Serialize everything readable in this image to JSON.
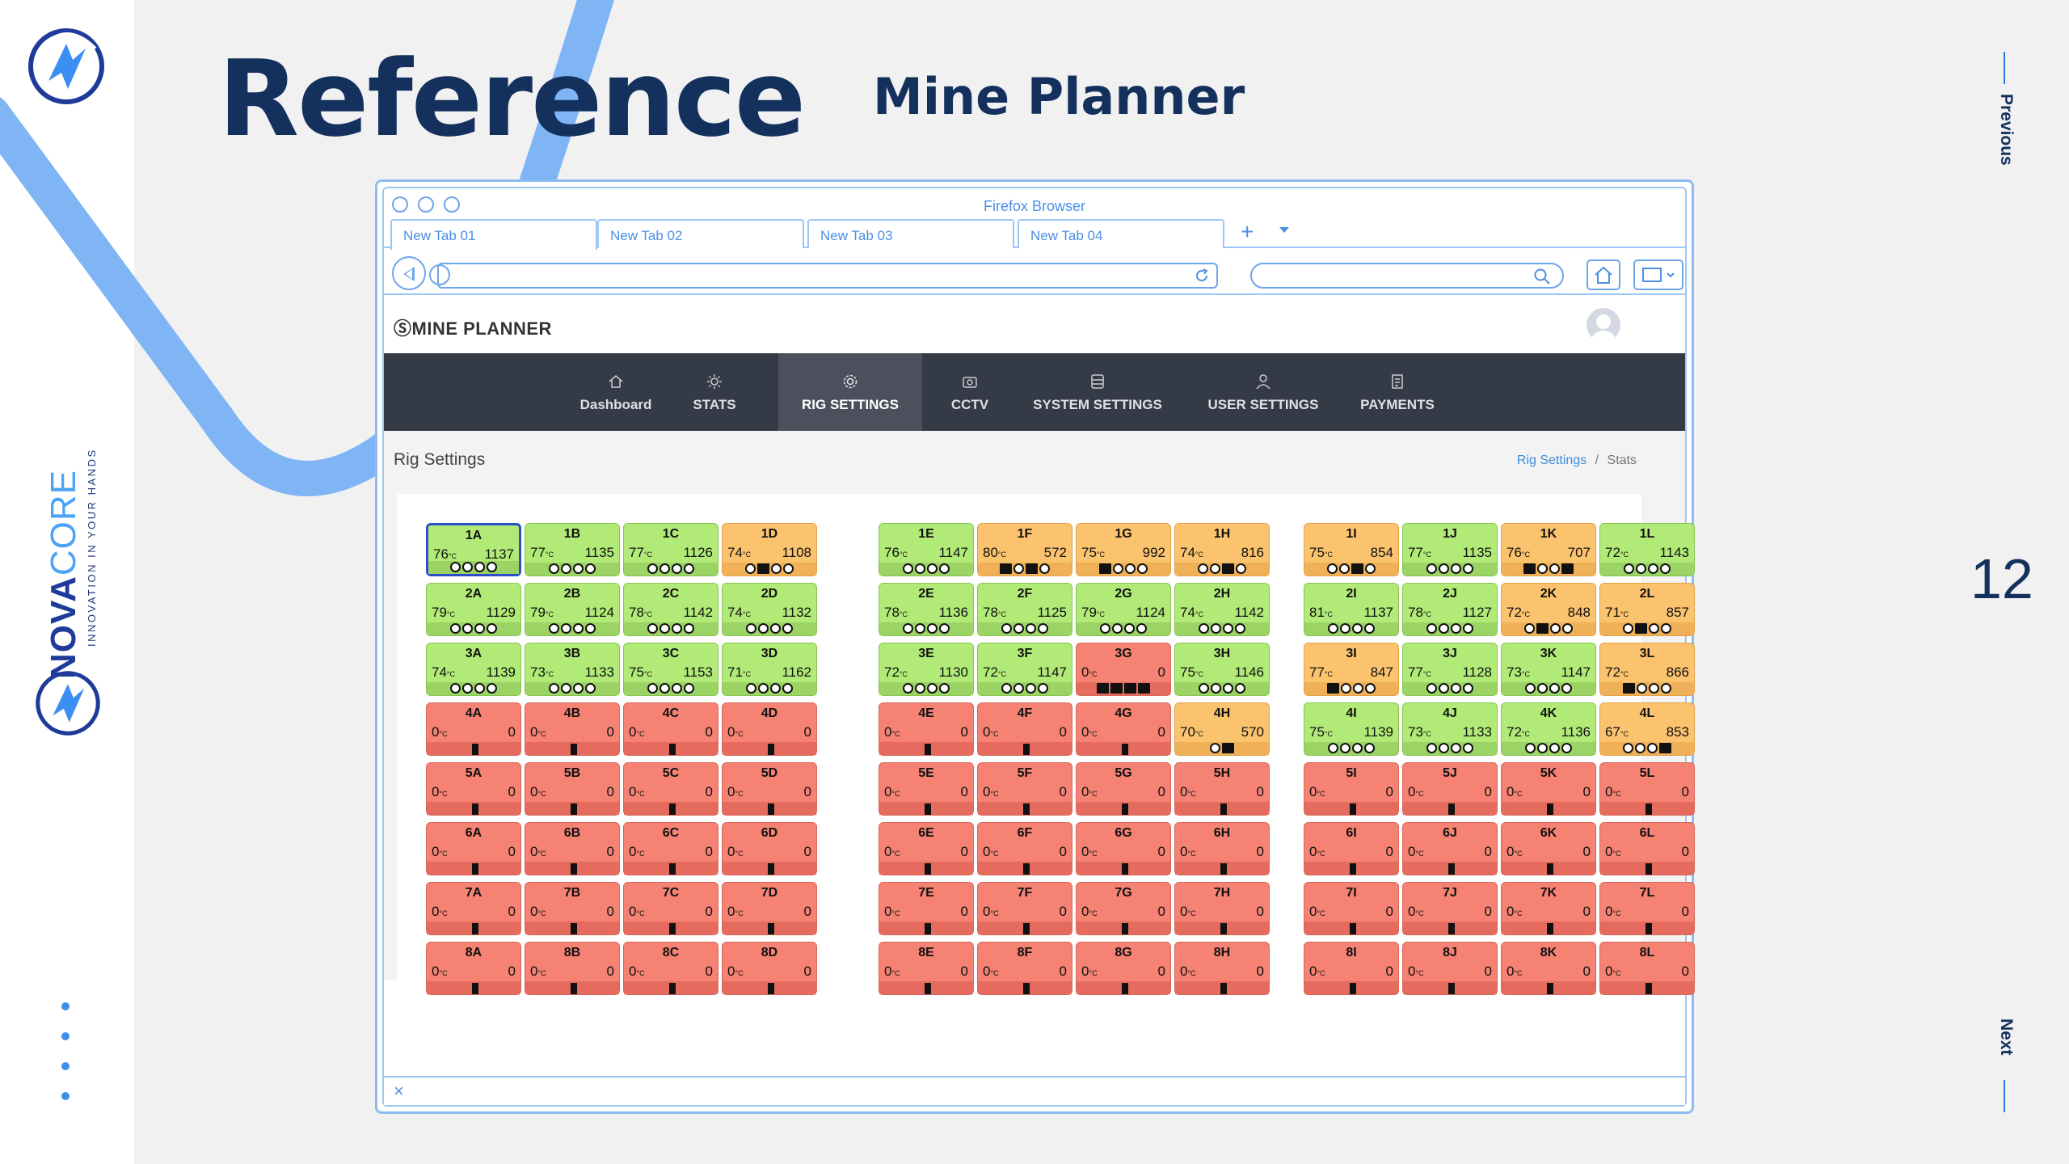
{
  "slide": {
    "title": "Reference",
    "subtitle": "Mine Planner",
    "page_number": "12",
    "prev_label": "Previous",
    "next_label": "Next",
    "brand_bold": "NOVA",
    "brand_light": "CORE",
    "brand_tagline": "INNOVATION IN YOUR HANDS",
    "colors": {
      "navy": "#14315e",
      "accent_blue": "#7fb4f5",
      "brand_blue": "#1e3b9a"
    }
  },
  "browser": {
    "title": "Firefox Browser",
    "tabs": [
      {
        "label": "New Tab 01"
      },
      {
        "label": "New Tab 02"
      },
      {
        "label": "New Tab 03"
      },
      {
        "label": "New Tab 04"
      }
    ],
    "new_tab_label": "+",
    "close_label": "×"
  },
  "app": {
    "logo_text": "ⓈMINE PLANNER",
    "nav": [
      {
        "label": "Dashboard",
        "icon": "home-icon"
      },
      {
        "label": "STATS",
        "icon": "sun-icon"
      },
      {
        "label": "RIG SETTINGS",
        "icon": "gear-icon",
        "active": true
      },
      {
        "label": "CCTV",
        "icon": "camera-icon"
      },
      {
        "label": "SYSTEM SETTINGS",
        "icon": "server-icon"
      },
      {
        "label": "USER SETTINGS",
        "icon": "user-icon"
      },
      {
        "label": "PAYMENTS",
        "icon": "document-icon"
      }
    ],
    "page_title": "Rig Settings",
    "breadcrumb": [
      "Rig Settings",
      "/",
      "Stats"
    ],
    "temp_unit": "°C",
    "rigs": [
      [
        "1A",
        "76",
        "1137",
        "green",
        "oooo"
      ],
      [
        "1B",
        "77",
        "1135",
        "green",
        "oooo"
      ],
      [
        "1C",
        "77",
        "1126",
        "green",
        "oooo"
      ],
      [
        "1D",
        "74",
        "1108",
        "orange",
        "oxoo"
      ],
      [
        "1E",
        "76",
        "1147",
        "green",
        "oooo"
      ],
      [
        "1F",
        "80",
        "572",
        "orange",
        "xoxo"
      ],
      [
        "1G",
        "75",
        "992",
        "orange",
        "xooo"
      ],
      [
        "1H",
        "74",
        "816",
        "orange",
        "ooxo"
      ],
      [
        "1I",
        "75",
        "854",
        "orange",
        "ooxo"
      ],
      [
        "1J",
        "77",
        "1135",
        "green",
        "oooo"
      ],
      [
        "1K",
        "76",
        "707",
        "orange",
        "xoox"
      ],
      [
        "1L",
        "72",
        "1143",
        "green",
        "oooo"
      ],
      [
        "2A",
        "79",
        "1129",
        "green",
        "oooo"
      ],
      [
        "2B",
        "79",
        "1124",
        "green",
        "oooo"
      ],
      [
        "2C",
        "78",
        "1142",
        "green",
        "oooo"
      ],
      [
        "2D",
        "74",
        "1132",
        "green",
        "oooo"
      ],
      [
        "2E",
        "78",
        "1136",
        "green",
        "oooo"
      ],
      [
        "2F",
        "78",
        "1125",
        "green",
        "oooo"
      ],
      [
        "2G",
        "79",
        "1124",
        "green",
        "oooo"
      ],
      [
        "2H",
        "74",
        "1142",
        "green",
        "oooo"
      ],
      [
        "2I",
        "81",
        "1137",
        "green",
        "oooo"
      ],
      [
        "2J",
        "78",
        "1127",
        "green",
        "oooo"
      ],
      [
        "2K",
        "72",
        "848",
        "orange",
        "oxoo"
      ],
      [
        "2L",
        "71",
        "857",
        "orange",
        "oxoo"
      ],
      [
        "3A",
        "74",
        "1139",
        "green",
        "oooo"
      ],
      [
        "3B",
        "73",
        "1133",
        "green",
        "oooo"
      ],
      [
        "3C",
        "75",
        "1153",
        "green",
        "oooo"
      ],
      [
        "3D",
        "71",
        "1162",
        "green",
        "oooo"
      ],
      [
        "3E",
        "72",
        "1130",
        "green",
        "oooo"
      ],
      [
        "3F",
        "72",
        "1147",
        "green",
        "oooo"
      ],
      [
        "3G",
        "0",
        "0",
        "red",
        "xxxx"
      ],
      [
        "3H",
        "75",
        "1146",
        "green",
        "oooo"
      ],
      [
        "3I",
        "77",
        "847",
        "orange",
        "xooo"
      ],
      [
        "3J",
        "77",
        "1128",
        "green",
        "oooo"
      ],
      [
        "3K",
        "73",
        "1147",
        "green",
        "oooo"
      ],
      [
        "3L",
        "72",
        "866",
        "orange",
        "xooo"
      ],
      [
        "4A",
        "0",
        "0",
        "red",
        ""
      ],
      [
        "4B",
        "0",
        "0",
        "red",
        ""
      ],
      [
        "4C",
        "0",
        "0",
        "red",
        ""
      ],
      [
        "4D",
        "0",
        "0",
        "red",
        ""
      ],
      [
        "4E",
        "0",
        "0",
        "red",
        ""
      ],
      [
        "4F",
        "0",
        "0",
        "red",
        ""
      ],
      [
        "4G",
        "0",
        "0",
        "red",
        ""
      ],
      [
        "4H",
        "70",
        "570",
        "orange",
        "ox"
      ],
      [
        "4I",
        "75",
        "1139",
        "green",
        "oooo"
      ],
      [
        "4J",
        "73",
        "1133",
        "green",
        "oooo"
      ],
      [
        "4K",
        "72",
        "1136",
        "green",
        "oooo"
      ],
      [
        "4L",
        "67",
        "853",
        "orange",
        "ooox"
      ],
      [
        "5A",
        "0",
        "0",
        "red",
        ""
      ],
      [
        "5B",
        "0",
        "0",
        "red",
        ""
      ],
      [
        "5C",
        "0",
        "0",
        "red",
        ""
      ],
      [
        "5D",
        "0",
        "0",
        "red",
        ""
      ],
      [
        "5E",
        "0",
        "0",
        "red",
        ""
      ],
      [
        "5F",
        "0",
        "0",
        "red",
        ""
      ],
      [
        "5G",
        "0",
        "0",
        "red",
        ""
      ],
      [
        "5H",
        "0",
        "0",
        "red",
        ""
      ],
      [
        "5I",
        "0",
        "0",
        "red",
        ""
      ],
      [
        "5J",
        "0",
        "0",
        "red",
        ""
      ],
      [
        "5K",
        "0",
        "0",
        "red",
        ""
      ],
      [
        "5L",
        "0",
        "0",
        "red",
        ""
      ],
      [
        "6A",
        "0",
        "0",
        "red",
        ""
      ],
      [
        "6B",
        "0",
        "0",
        "red",
        ""
      ],
      [
        "6C",
        "0",
        "0",
        "red",
        ""
      ],
      [
        "6D",
        "0",
        "0",
        "red",
        ""
      ],
      [
        "6E",
        "0",
        "0",
        "red",
        ""
      ],
      [
        "6F",
        "0",
        "0",
        "red",
        ""
      ],
      [
        "6G",
        "0",
        "0",
        "red",
        ""
      ],
      [
        "6H",
        "0",
        "0",
        "red",
        ""
      ],
      [
        "6I",
        "0",
        "0",
        "red",
        ""
      ],
      [
        "6J",
        "0",
        "0",
        "red",
        ""
      ],
      [
        "6K",
        "0",
        "0",
        "red",
        ""
      ],
      [
        "6L",
        "0",
        "0",
        "red",
        ""
      ],
      [
        "7A",
        "0",
        "0",
        "red",
        ""
      ],
      [
        "7B",
        "0",
        "0",
        "red",
        ""
      ],
      [
        "7C",
        "0",
        "0",
        "red",
        ""
      ],
      [
        "7D",
        "0",
        "0",
        "red",
        ""
      ],
      [
        "7E",
        "0",
        "0",
        "red",
        ""
      ],
      [
        "7F",
        "0",
        "0",
        "red",
        ""
      ],
      [
        "7G",
        "0",
        "0",
        "red",
        ""
      ],
      [
        "7H",
        "0",
        "0",
        "red",
        ""
      ],
      [
        "7I",
        "0",
        "0",
        "red",
        ""
      ],
      [
        "7J",
        "0",
        "0",
        "red",
        ""
      ],
      [
        "7K",
        "0",
        "0",
        "red",
        ""
      ],
      [
        "7L",
        "0",
        "0",
        "red",
        ""
      ],
      [
        "8A",
        "0",
        "0",
        "red",
        ""
      ],
      [
        "8B",
        "0",
        "0",
        "red",
        ""
      ],
      [
        "8C",
        "0",
        "0",
        "red",
        ""
      ],
      [
        "8D",
        "0",
        "0",
        "red",
        ""
      ],
      [
        "8E",
        "0",
        "0",
        "red",
        ""
      ],
      [
        "8F",
        "0",
        "0",
        "red",
        ""
      ],
      [
        "8G",
        "0",
        "0",
        "red",
        ""
      ],
      [
        "8H",
        "0",
        "0",
        "red",
        ""
      ],
      [
        "8I",
        "0",
        "0",
        "red",
        ""
      ],
      [
        "8J",
        "0",
        "0",
        "red",
        ""
      ],
      [
        "8K",
        "0",
        "0",
        "red",
        ""
      ],
      [
        "8L",
        "0",
        "0",
        "red",
        ""
      ]
    ],
    "selected_rig": "1A",
    "status_colors": {
      "green": "#b2ea78",
      "orange": "#fbc36e",
      "red": "#f58273"
    }
  }
}
